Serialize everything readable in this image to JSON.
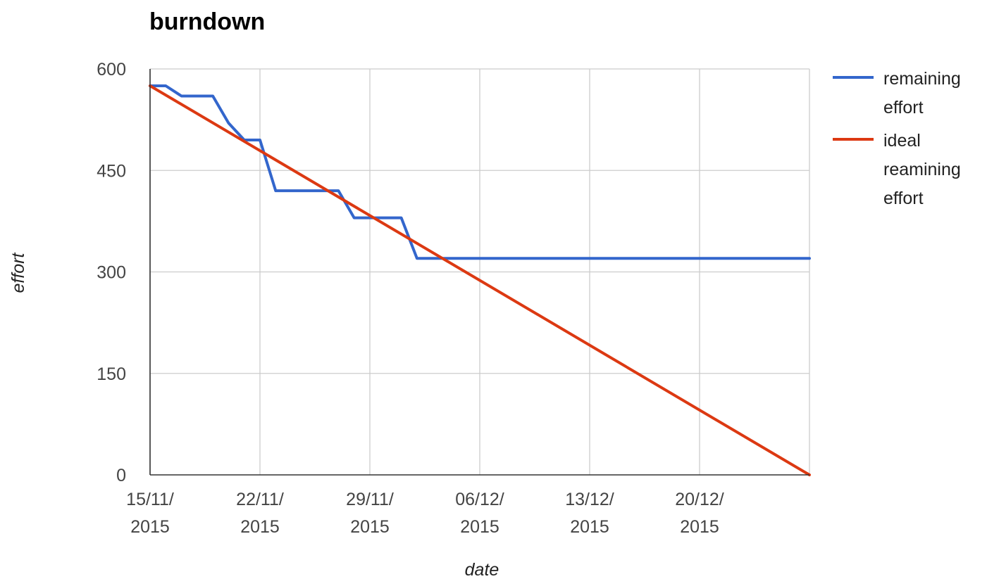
{
  "chart_data": {
    "type": "line",
    "title": "burndown",
    "xlabel": "date",
    "ylabel": "effort",
    "x_axis": {
      "type": "date",
      "range": [
        "2015-11-15",
        "2015-12-27"
      ],
      "ticks": [
        {
          "date": "2015-11-15",
          "label": [
            "15/11/",
            "2015"
          ]
        },
        {
          "date": "2015-11-22",
          "label": [
            "22/11/",
            "2015"
          ]
        },
        {
          "date": "2015-11-29",
          "label": [
            "29/11/",
            "2015"
          ]
        },
        {
          "date": "2015-12-06",
          "label": [
            "06/12/",
            "2015"
          ]
        },
        {
          "date": "2015-12-13",
          "label": [
            "13/12/",
            "2015"
          ]
        },
        {
          "date": "2015-12-20",
          "label": [
            "20/12/",
            "2015"
          ]
        }
      ]
    },
    "y_axis": {
      "range": [
        0,
        600
      ],
      "ticks": [
        {
          "value": 0,
          "label": "0"
        },
        {
          "value": 150,
          "label": "150"
        },
        {
          "value": 300,
          "label": "300"
        },
        {
          "value": 450,
          "label": "450"
        },
        {
          "value": 600,
          "label": "600"
        }
      ]
    },
    "grid": true,
    "legend_position": "right",
    "series": [
      {
        "name": [
          "remaining",
          "effort"
        ],
        "color": "#3366cc",
        "points": [
          {
            "x": "2015-11-15",
            "y": 575
          },
          {
            "x": "2015-11-16",
            "y": 575
          },
          {
            "x": "2015-11-17",
            "y": 560
          },
          {
            "x": "2015-11-18",
            "y": 560
          },
          {
            "x": "2015-11-19",
            "y": 560
          },
          {
            "x": "2015-11-20",
            "y": 520
          },
          {
            "x": "2015-11-21",
            "y": 495
          },
          {
            "x": "2015-11-22",
            "y": 495
          },
          {
            "x": "2015-11-23",
            "y": 420
          },
          {
            "x": "2015-11-24",
            "y": 420
          },
          {
            "x": "2015-11-25",
            "y": 420
          },
          {
            "x": "2015-11-26",
            "y": 420
          },
          {
            "x": "2015-11-27",
            "y": 420
          },
          {
            "x": "2015-11-28",
            "y": 380
          },
          {
            "x": "2015-11-29",
            "y": 380
          },
          {
            "x": "2015-11-30",
            "y": 380
          },
          {
            "x": "2015-12-01",
            "y": 380
          },
          {
            "x": "2015-12-02",
            "y": 320
          },
          {
            "x": "2015-12-27",
            "y": 320
          }
        ]
      },
      {
        "name": [
          "ideal",
          "reamining",
          "effort"
        ],
        "color": "#dc3912",
        "points": [
          {
            "x": "2015-11-15",
            "y": 575
          },
          {
            "x": "2015-12-27",
            "y": 0
          }
        ]
      }
    ]
  }
}
